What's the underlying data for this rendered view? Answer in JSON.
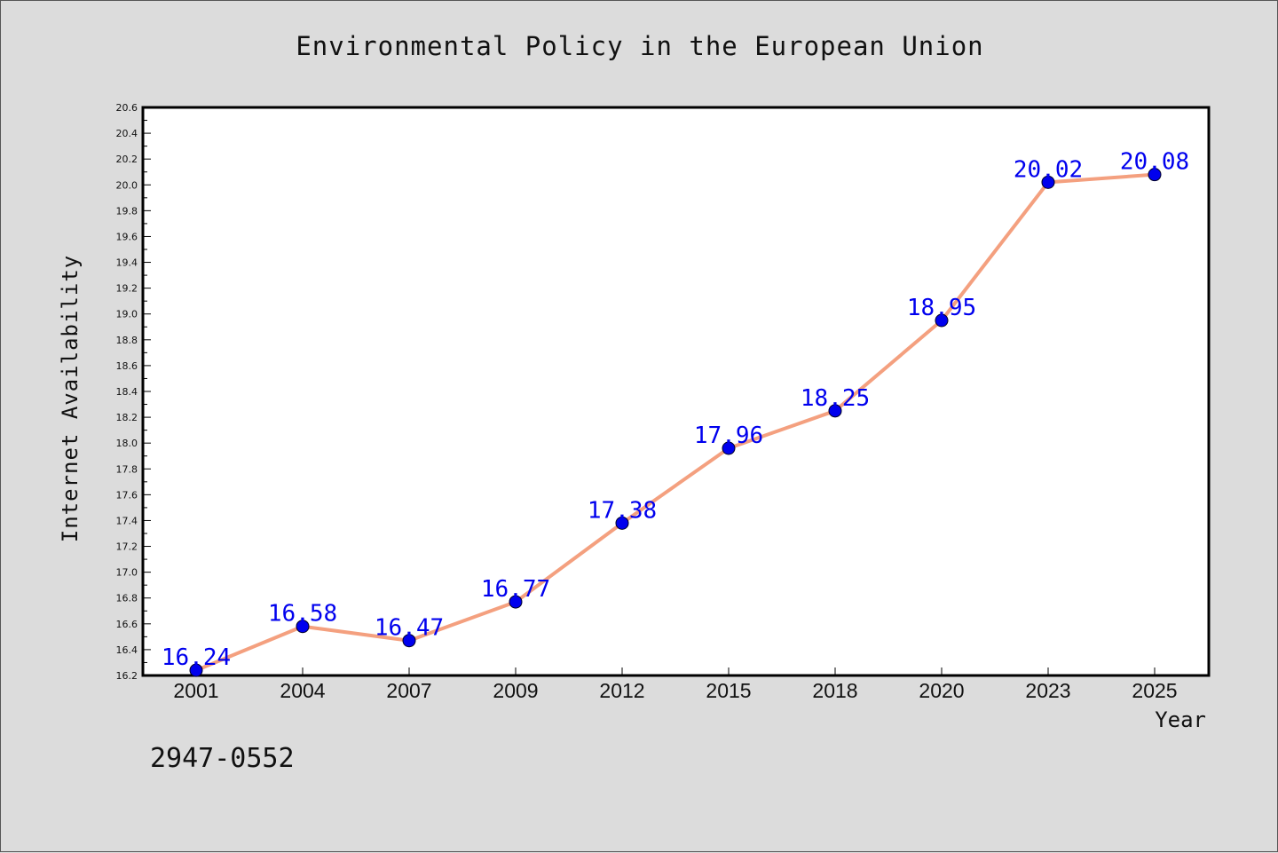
{
  "chart_data": {
    "type": "line",
    "title": "Environmental Policy in the European Union",
    "xlabel": "Year",
    "ylabel": "Internet Availability",
    "categories": [
      "2001",
      "2004",
      "2007",
      "2009",
      "2012",
      "2015",
      "2018",
      "2020",
      "2023",
      "2025"
    ],
    "series": [
      {
        "values": [
          16.24,
          16.58,
          16.47,
          16.77,
          17.38,
          17.96,
          18.25,
          18.95,
          20.02,
          20.08
        ]
      }
    ],
    "data_labels": [
      "16.24",
      "16.58",
      "16.47",
      "16.77",
      "17.38",
      "17.96",
      "18.25",
      "18.95",
      "20.02",
      "20.08"
    ],
    "ylim": [
      16.2,
      20.6
    ],
    "yticks": [
      "16.2",
      "16.4",
      "16.6",
      "16.8",
      "17.0",
      "17.2",
      "17.4",
      "17.6",
      "17.8",
      "18.0",
      "18.2",
      "18.4",
      "18.6",
      "18.8",
      "19.0",
      "19.2",
      "19.4",
      "19.6",
      "19.8",
      "20.0",
      "20.2",
      "20.4",
      "20.6"
    ],
    "grid": false,
    "legend": "none",
    "colors": {
      "line": "#f4a07f",
      "marker": "#0000ee",
      "label": "#0000ee",
      "plot_bg": "#ffffff",
      "page_bg": "#dcdcdc"
    }
  },
  "annotation": {
    "code": "2947-0552"
  }
}
